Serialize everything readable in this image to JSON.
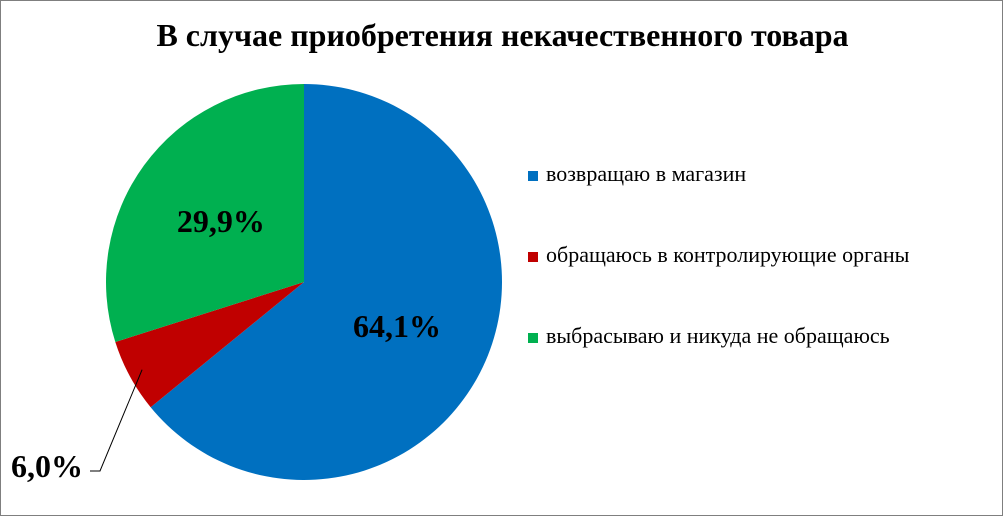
{
  "chart_data": {
    "type": "pie",
    "title": "В случае приобретения некачественного товара",
    "start_angle_deg": 0,
    "direction": "clockwise",
    "legend_position": "right",
    "slices": [
      {
        "name": "возвращаю в магазин",
        "value": 64.1,
        "label": "64,1%",
        "color": "#0070C0"
      },
      {
        "name": "обращаюсь в контролирующие органы",
        "value": 6.0,
        "label": "6,0%",
        "color": "#C00000"
      },
      {
        "name": "выбрасываю и никуда не обращаюсь",
        "value": 29.9,
        "label": "29,9%",
        "color": "#00B050"
      }
    ]
  }
}
